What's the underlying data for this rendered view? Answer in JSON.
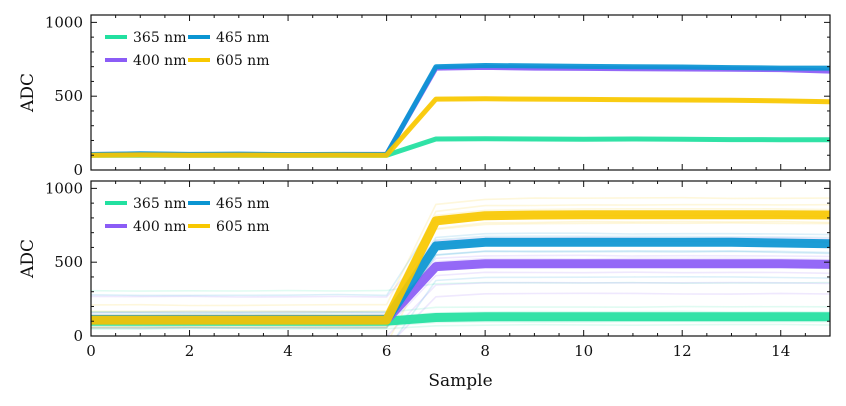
{
  "chart_data": [
    {
      "type": "line",
      "panel": "top",
      "xlabel": "",
      "ylabel": "ADC",
      "xlim": [
        0,
        15
      ],
      "ylim": [
        0,
        1050
      ],
      "yticks": [
        "0",
        "500",
        "1000"
      ],
      "legend": {
        "position": "top-left",
        "columns": 2
      },
      "series": [
        {
          "name": "365 nm",
          "color": "#22e0a0",
          "x": [
            0,
            1,
            2,
            3,
            4,
            5,
            6,
            7,
            8,
            9,
            10,
            11,
            12,
            13,
            14,
            15
          ],
          "values": [
            100,
            100,
            100,
            100,
            100,
            100,
            100,
            210,
            212,
            210,
            208,
            210,
            208,
            206,
            205,
            205
          ]
        },
        {
          "name": "400 nm",
          "color": "#8b5cf6",
          "x": [
            0,
            1,
            2,
            3,
            4,
            5,
            6,
            7,
            8,
            9,
            10,
            11,
            12,
            13,
            14,
            15
          ],
          "values": [
            105,
            108,
            104,
            106,
            104,
            105,
            106,
            690,
            695,
            690,
            688,
            686,
            684,
            682,
            680,
            670
          ]
        },
        {
          "name": "465 nm",
          "color": "#0a95d2",
          "x": [
            0,
            1,
            2,
            3,
            4,
            5,
            6,
            7,
            8,
            9,
            10,
            11,
            12,
            13,
            14,
            15
          ],
          "values": [
            105,
            110,
            106,
            108,
            104,
            106,
            105,
            700,
            708,
            705,
            702,
            700,
            698,
            694,
            690,
            690
          ]
        },
        {
          "name": "605 nm",
          "color": "#f8c800",
          "x": [
            0,
            1,
            2,
            3,
            4,
            5,
            6,
            7,
            8,
            9,
            10,
            11,
            12,
            13,
            14,
            15
          ],
          "values": [
            100,
            102,
            100,
            101,
            100,
            101,
            100,
            480,
            482,
            480,
            478,
            476,
            474,
            472,
            468,
            462
          ]
        }
      ]
    },
    {
      "type": "line",
      "panel": "bottom",
      "xlabel": "Sample",
      "ylabel": "ADC",
      "xlim": [
        0,
        15
      ],
      "ylim": [
        0,
        1050
      ],
      "xticks": [
        "0",
        "2",
        "4",
        "6",
        "8",
        "10",
        "12",
        "14"
      ],
      "yticks": [
        "0",
        "500",
        "1000"
      ],
      "legend": {
        "position": "top-left",
        "columns": 2
      },
      "series": [
        {
          "name": "365 nm",
          "color": "#22e0a0",
          "x": [
            0,
            1,
            2,
            3,
            4,
            5,
            6,
            7,
            8,
            9,
            10,
            11,
            12,
            13,
            14,
            15
          ],
          "values": [
            100,
            100,
            100,
            100,
            100,
            100,
            100,
            125,
            130,
            130,
            130,
            130,
            130,
            130,
            130,
            130
          ]
        },
        {
          "name": "400 nm",
          "color": "#8b5cf6",
          "x": [
            0,
            1,
            2,
            3,
            4,
            5,
            6,
            7,
            8,
            9,
            10,
            11,
            12,
            13,
            14,
            15
          ],
          "values": [
            110,
            110,
            110,
            110,
            110,
            110,
            110,
            470,
            490,
            490,
            490,
            490,
            490,
            490,
            490,
            485
          ]
        },
        {
          "name": "465 nm",
          "color": "#0a95d2",
          "x": [
            0,
            1,
            2,
            3,
            4,
            5,
            6,
            7,
            8,
            9,
            10,
            11,
            12,
            13,
            14,
            15
          ],
          "values": [
            112,
            112,
            112,
            112,
            112,
            112,
            112,
            610,
            635,
            635,
            635,
            635,
            635,
            635,
            630,
            625
          ]
        },
        {
          "name": "605 nm",
          "color": "#f8c800",
          "x": [
            0,
            1,
            2,
            3,
            4,
            5,
            6,
            7,
            8,
            9,
            10,
            11,
            12,
            13,
            14,
            15
          ],
          "values": [
            108,
            108,
            108,
            108,
            108,
            108,
            108,
            780,
            815,
            820,
            822,
            822,
            822,
            822,
            822,
            820
          ]
        }
      ]
    }
  ]
}
